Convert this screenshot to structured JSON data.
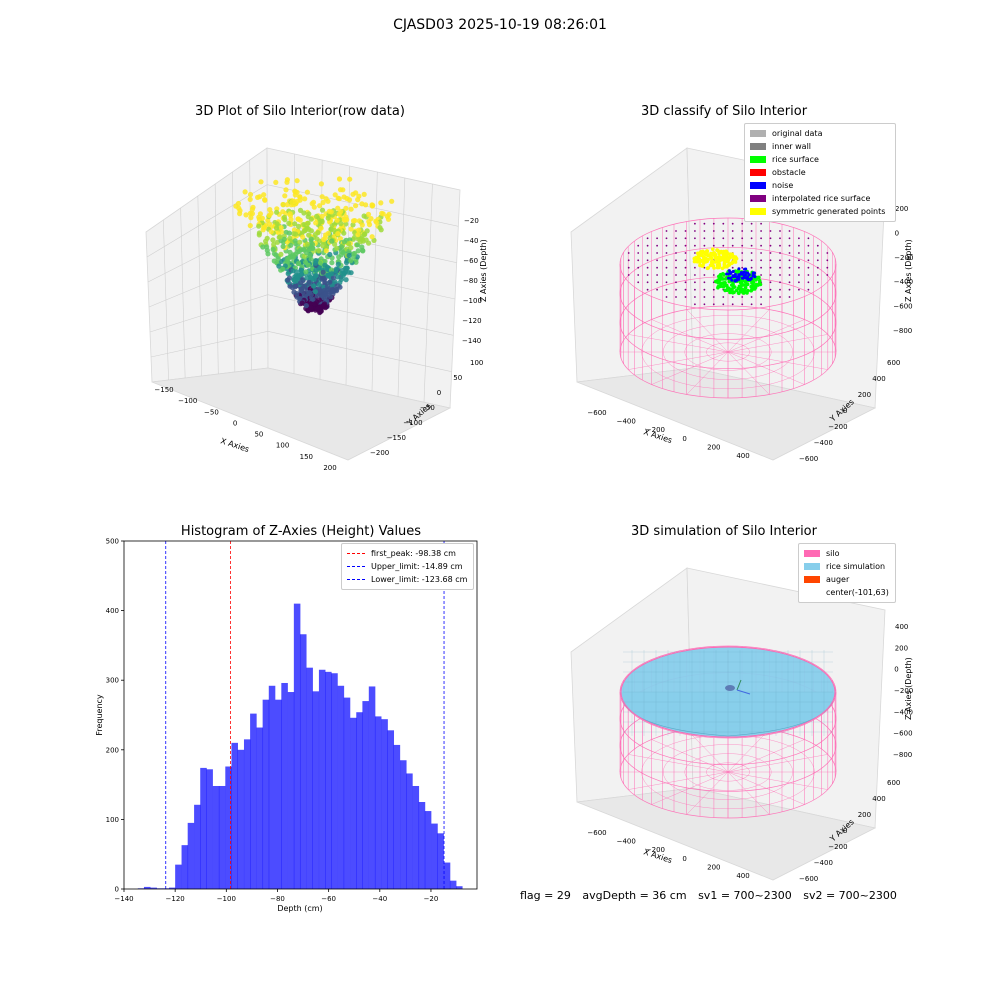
{
  "suptitle": "CJASD03 2025-10-19 08:26:01",
  "footer": {
    "flag": "flag = 29",
    "avg_depth": "avgDepth = 36 cm",
    "sv1": "sv1 = 700~2300",
    "sv2": "sv2 = 700~2300"
  },
  "chart_data": [
    {
      "type": "scatter",
      "title": "3D Plot of Silo Interior(row data)",
      "xlabel": "X Axies",
      "ylabel": "Y Axies",
      "zlabel": "Z Axies (Depth)",
      "x_ticks": [
        "−150",
        "−100",
        "−50",
        "0",
        "50",
        "100",
        "150",
        "200"
      ],
      "y_ticks": [
        "100",
        "50",
        "0",
        "−50",
        "−100",
        "−150",
        "−200"
      ],
      "z_ticks": [
        "−20",
        "−40",
        "−60",
        "−80",
        "−100",
        "−120",
        "−140"
      ],
      "colormap": "viridis",
      "grid": true
    },
    {
      "type": "scatter",
      "title": "3D classify of Silo Interior",
      "xlabel": "X Axies",
      "ylabel": "Y Axies",
      "zlabel": "Z Axies (Depth)",
      "x_ticks": [
        "−600",
        "−400",
        "−200",
        "0",
        "200",
        "400"
      ],
      "y_ticks": [
        "600",
        "400",
        "200",
        "0",
        "−200",
        "−400",
        "−600"
      ],
      "z_ticks": [
        "200",
        "0",
        "−200",
        "−400",
        "−600",
        "−800"
      ],
      "legend_position": "top-right",
      "legend": [
        {
          "label": "original data",
          "color": "#b0b0b0"
        },
        {
          "label": "inner wall",
          "color": "#808080"
        },
        {
          "label": "rice surface",
          "color": "#00ff00"
        },
        {
          "label": "obstacle",
          "color": "#ff0000"
        },
        {
          "label": "noise",
          "color": "#0000ff"
        },
        {
          "label": "interpolated rice surface",
          "color": "#800080"
        },
        {
          "label": "symmetric generated points",
          "color": "#ffff00"
        }
      ],
      "wall_color": "#ff69b4",
      "grid": true
    },
    {
      "type": "bar",
      "title": "Histogram of Z-Axies (Height) Values",
      "xlabel": "Depth (cm)",
      "ylabel": "Frequency",
      "xlim": [
        -140,
        -2
      ],
      "ylim": [
        0,
        500
      ],
      "x_ticks": [
        -140,
        -120,
        -100,
        -80,
        -60,
        -40,
        -20
      ],
      "x_tick_labels": [
        "−140",
        "−120",
        "−100",
        "−80",
        "−60",
        "−40",
        "−20"
      ],
      "y_ticks": [
        0,
        100,
        200,
        300,
        400,
        500
      ],
      "bar_color": "#0000ff",
      "bin_width": 2.44,
      "bins_start": [
        -134.6,
        -132.2,
        -129.7,
        -127.3,
        -124.8,
        -122.4,
        -120.0,
        -117.5,
        -115.1,
        -112.6,
        -110.2,
        -107.8,
        -105.3,
        -102.9,
        -100.4,
        -98.0,
        -95.6,
        -93.1,
        -90.7,
        -88.2,
        -85.8,
        -83.4,
        -80.9,
        -78.5,
        -76.0,
        -73.6,
        -71.2,
        -68.7,
        -66.3,
        -63.8,
        -61.4,
        -59.0,
        -56.5,
        -54.1,
        -51.6,
        -49.2,
        -46.8,
        -44.3,
        -41.9,
        -39.4,
        -37.0,
        -34.6,
        -32.1,
        -29.7,
        -27.2,
        -24.8,
        -22.4,
        -19.9,
        -17.5,
        -15.0,
        -12.6,
        -10.2
      ],
      "values": [
        1,
        3,
        2,
        1,
        1,
        2,
        35,
        63,
        95,
        121,
        174,
        172,
        148,
        148,
        176,
        210,
        200,
        215,
        252,
        232,
        272,
        292,
        272,
        296,
        283,
        410,
        366,
        318,
        284,
        315,
        312,
        310,
        292,
        275,
        246,
        254,
        270,
        291,
        248,
        244,
        228,
        207,
        185,
        166,
        148,
        125,
        112,
        94,
        80,
        38,
        12,
        4
      ],
      "reference_lines": [
        {
          "label": "first_peak: -98.38 cm",
          "x": -98.38,
          "color": "#ff0000"
        },
        {
          "label": "Upper_limit: -14.89 cm",
          "x": -14.89,
          "color": "#0000ff"
        },
        {
          "label": "Lower_limit: -123.68 cm",
          "x": -123.68,
          "color": "#0000ff"
        }
      ],
      "legend_position": "top-right"
    },
    {
      "type": "scatter",
      "title": "3D simulation of Silo Interior",
      "xlabel": "X Axies",
      "ylabel": "Y Axies",
      "zlabel": "Z Axies (Depth)",
      "x_ticks": [
        "−600",
        "−400",
        "−200",
        "0",
        "200",
        "400"
      ],
      "y_ticks": [
        "600",
        "400",
        "200",
        "0",
        "−200",
        "−400",
        "−600"
      ],
      "z_ticks": [
        "400",
        "200",
        "0",
        "−200",
        "−400",
        "−600",
        "−800"
      ],
      "legend_position": "top-right",
      "legend": [
        {
          "label": "silo",
          "color": "#ff69b4"
        },
        {
          "label": "rice simulation",
          "color": "#87ceeb"
        },
        {
          "label": "auger",
          "color": "#ff4500"
        },
        {
          "label": "center(-101,63)",
          "color": ""
        }
      ],
      "grid": true
    }
  ]
}
